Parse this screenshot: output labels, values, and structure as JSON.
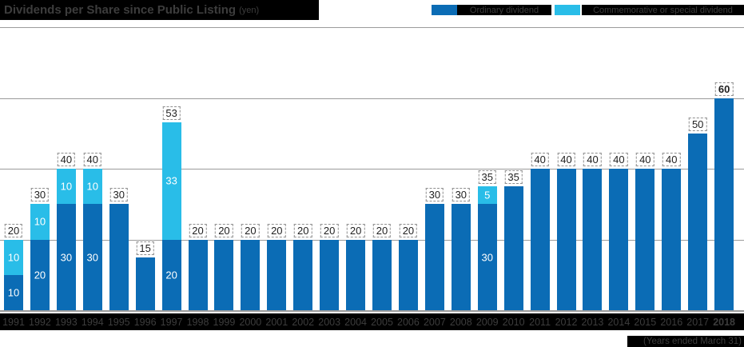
{
  "title": {
    "text": "Dividends per Share since Public Listing",
    "unit": "(yen)"
  },
  "legend": [
    {
      "label": "Ordinary dividend",
      "color": "#0b6cb5"
    },
    {
      "label": "Commemorative or special dividend",
      "color": "#29bde8"
    }
  ],
  "footnote": "(Years ended March 31)",
  "emphasized_year": "2018",
  "colors": {
    "ordinary": "#0b6cb5",
    "special": "#29bde8",
    "gridline": "#9b9b9b",
    "bar_background": "#000000",
    "bar_text": "#3d3d3d"
  },
  "chart_data": {
    "type": "bar",
    "stacked": true,
    "title": "Dividends per Share since Public Listing (yen)",
    "xlabel": "",
    "ylabel": "",
    "ylim": [
      0,
      80
    ],
    "gridlines": [
      20,
      40,
      60,
      80
    ],
    "legend_position": "top-right",
    "categories": [
      "1991",
      "1992",
      "1993",
      "1994",
      "1995",
      "1996",
      "1997",
      "1998",
      "1999",
      "2000",
      "2001",
      "2002",
      "2003",
      "2004",
      "2005",
      "2006",
      "2007",
      "2008",
      "2009",
      "2010",
      "2011",
      "2012",
      "2013",
      "2014",
      "2015",
      "2016",
      "2017",
      "2018"
    ],
    "series": [
      {
        "name": "Ordinary dividend",
        "color": "#0b6cb5",
        "values": [
          10,
          20,
          30,
          30,
          30,
          15,
          20,
          20,
          20,
          20,
          20,
          20,
          20,
          20,
          20,
          20,
          30,
          30,
          30,
          35,
          40,
          40,
          40,
          40,
          40,
          40,
          50,
          60
        ]
      },
      {
        "name": "Commemorative or special dividend",
        "color": "#29bde8",
        "values": [
          10,
          10,
          10,
          10,
          0,
          0,
          33,
          0,
          0,
          0,
          0,
          0,
          0,
          0,
          0,
          0,
          0,
          0,
          5,
          0,
          0,
          0,
          0,
          0,
          0,
          0,
          0,
          0
        ]
      }
    ],
    "totals": [
      20,
      30,
      40,
      40,
      30,
      15,
      53,
      20,
      20,
      20,
      20,
      20,
      20,
      20,
      20,
      20,
      30,
      30,
      35,
      35,
      40,
      40,
      40,
      40,
      40,
      40,
      50,
      60
    ],
    "annotation": "(Years ended March 31)"
  }
}
